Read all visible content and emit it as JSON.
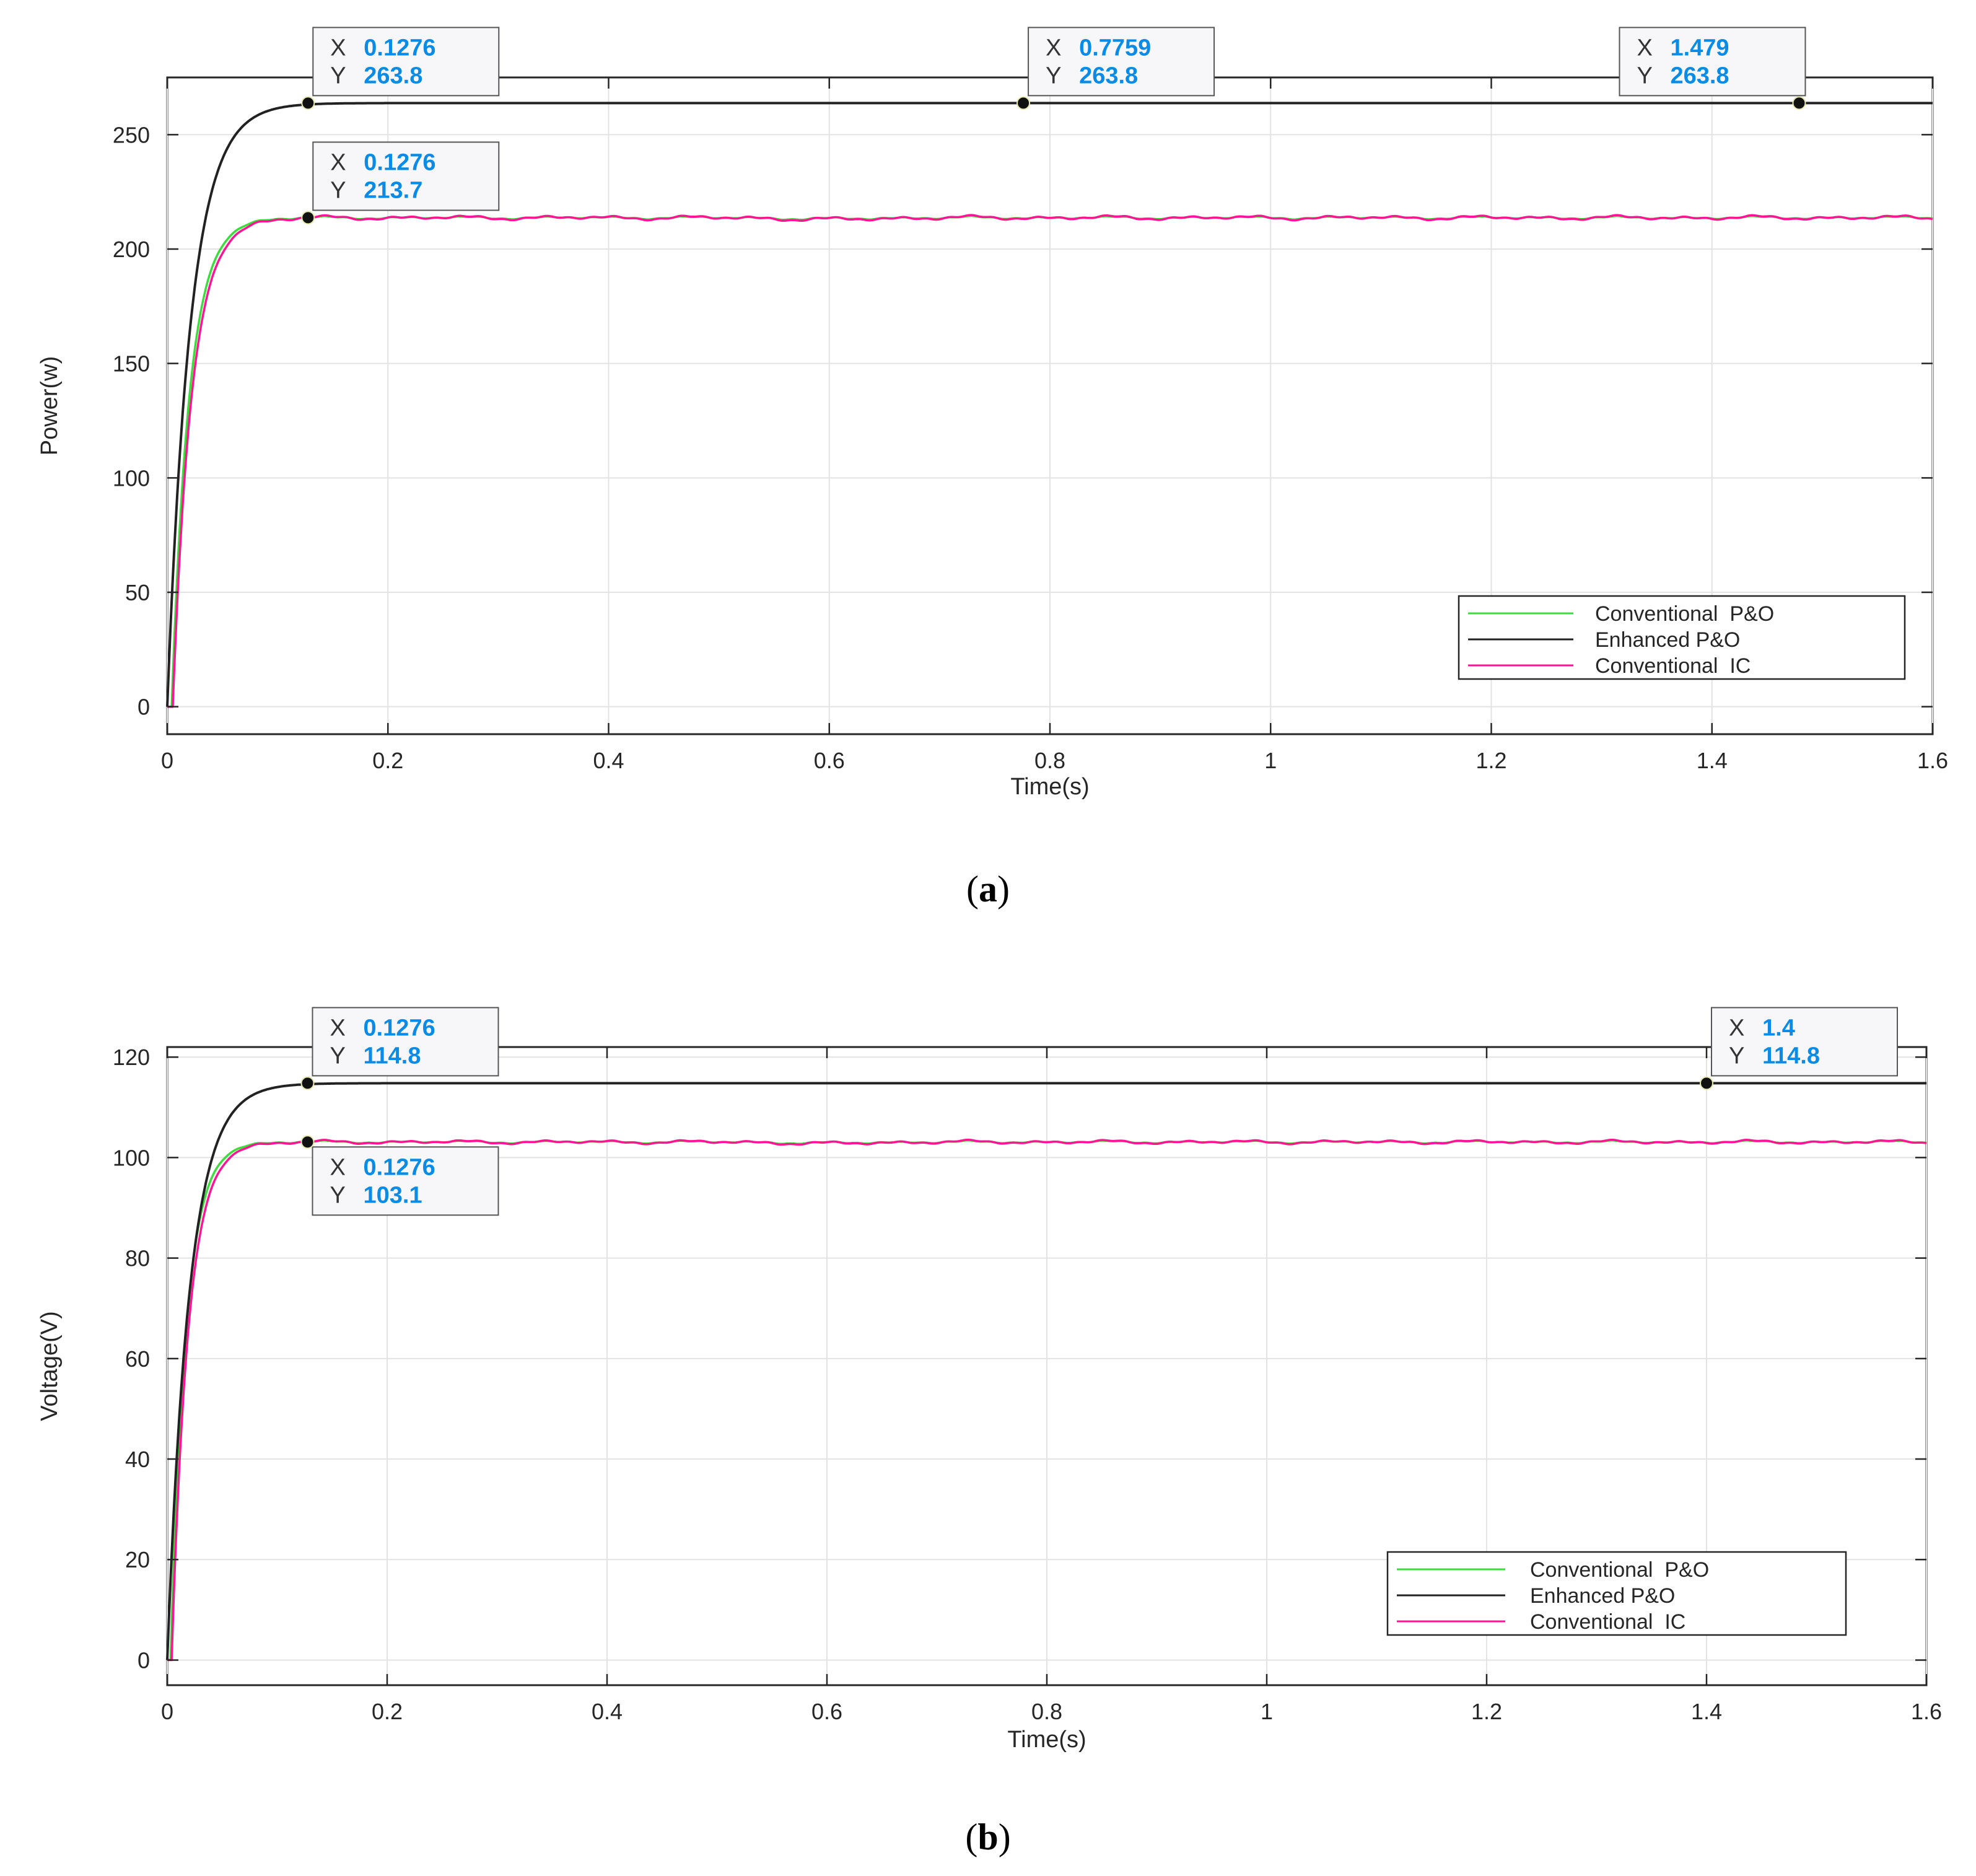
{
  "colors": {
    "conventional_po": "#3ddc3d",
    "enhanced_po": "#222222",
    "conventional_ic": "#ff1493",
    "tip_value": "#0a8ce6"
  },
  "chart_data": [
    {
      "type": "line",
      "panel_label": "a",
      "xlabel": "Time(s)",
      "ylabel": "Power(w)",
      "xlim": [
        0,
        1.6
      ],
      "ylim": [
        -12,
        275
      ],
      "grid": true,
      "xticks": [
        0,
        0.2,
        0.4,
        0.6,
        0.8,
        1,
        1.2,
        1.4,
        1.6
      ],
      "xtick_labels": [
        "0",
        "0.2",
        "0.4",
        "0.6",
        "0.8",
        "1",
        "1.2",
        "1.4",
        "1.6"
      ],
      "yticks": [
        0,
        50,
        100,
        150,
        200,
        250
      ],
      "ytick_labels": [
        "0",
        "50",
        "100",
        "150",
        "200",
        "250"
      ],
      "legend_position": "bottom-right",
      "legend": [
        "Conventional  P&O",
        "Enhanced P&O",
        "Conventional  IC"
      ],
      "series": [
        {
          "name": "Conventional  P&O",
          "color_key": "conventional_po",
          "steady": 213.7,
          "tau": 0.016,
          "delay": 0.004,
          "ripple": 0.6
        },
        {
          "name": "Enhanced P&O",
          "color_key": "enhanced_po",
          "steady": 263.8,
          "tau": 0.021,
          "delay": 0.0,
          "ripple": 0.0
        },
        {
          "name": "Conventional  IC",
          "color_key": "conventional_ic",
          "steady": 213.7,
          "tau": 0.017,
          "delay": 0.005,
          "ripple": 0.9
        }
      ],
      "datatips": [
        {
          "x_prefix": "X",
          "x_value": "0.1276",
          "y_prefix": "Y",
          "y_value": "263.8",
          "x": 0.1276,
          "y": 263.8,
          "box": "above-right"
        },
        {
          "x_prefix": "X",
          "x_value": "0.7759",
          "y_prefix": "Y",
          "y_value": "263.8",
          "x": 0.7759,
          "y": 263.8,
          "box": "above-right"
        },
        {
          "x_prefix": "X",
          "x_value": "1.479",
          "y_prefix": "Y",
          "y_value": "263.8",
          "x": 1.479,
          "y": 263.8,
          "box": "above-left"
        },
        {
          "x_prefix": "X",
          "x_value": "0.1276",
          "y_prefix": "Y",
          "y_value": "213.7",
          "x": 0.1276,
          "y": 213.7,
          "box": "above-right"
        }
      ]
    },
    {
      "type": "line",
      "panel_label": "b",
      "xlabel": "Time(s)",
      "ylabel": "Voltage(V)",
      "xlim": [
        0,
        1.6
      ],
      "ylim": [
        -5,
        122
      ],
      "grid": true,
      "xticks": [
        0,
        0.2,
        0.4,
        0.6,
        0.8,
        1,
        1.2,
        1.4,
        1.6
      ],
      "xtick_labels": [
        "0",
        "0.2",
        "0.4",
        "0.6",
        "0.8",
        "1",
        "1.2",
        "1.4",
        "1.6"
      ],
      "yticks": [
        0,
        20,
        40,
        60,
        80,
        100,
        120
      ],
      "ytick_labels": [
        "0",
        "20",
        "40",
        "60",
        "80",
        "100",
        "120"
      ],
      "legend_position": "bottom-right",
      "legend": [
        "Conventional  P&O",
        "Enhanced P&O",
        "Conventional  IC"
      ],
      "series": [
        {
          "name": "Conventional  P&O",
          "color_key": "conventional_po",
          "steady": 103.1,
          "tau": 0.014,
          "delay": 0.003,
          "ripple": 0.25
        },
        {
          "name": "Enhanced P&O",
          "color_key": "enhanced_po",
          "steady": 114.8,
          "tau": 0.02,
          "delay": 0.0,
          "ripple": 0.0
        },
        {
          "name": "Conventional  IC",
          "color_key": "conventional_ic",
          "steady": 103.1,
          "tau": 0.015,
          "delay": 0.004,
          "ripple": 0.35
        }
      ],
      "datatips": [
        {
          "x_prefix": "X",
          "x_value": "0.1276",
          "y_prefix": "Y",
          "y_value": "114.8",
          "x": 0.1276,
          "y": 114.8,
          "box": "above-right"
        },
        {
          "x_prefix": "X",
          "x_value": "1.4",
          "y_prefix": "Y",
          "y_value": "114.8",
          "x": 1.4,
          "y": 114.8,
          "box": "above-right"
        },
        {
          "x_prefix": "X",
          "x_value": "0.1276",
          "y_prefix": "Y",
          "y_value": "103.1",
          "x": 0.1276,
          "y": 103.1,
          "box": "below-right"
        }
      ]
    }
  ]
}
